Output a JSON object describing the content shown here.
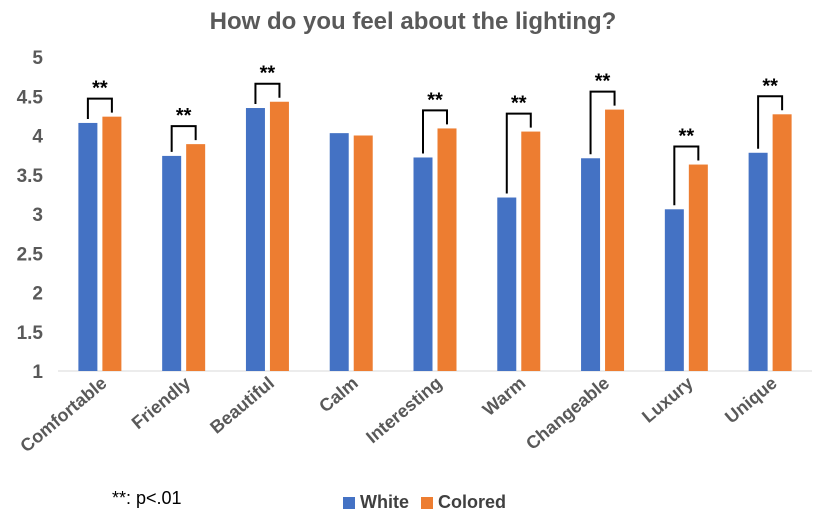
{
  "chart_data": {
    "type": "bar",
    "title": "How do you feel about the lighting?",
    "categories": [
      "Comfortable",
      "Friendly",
      "Beautiful",
      "Calm",
      "Interesting",
      "Warm",
      "Changeable",
      "Luxury",
      "Unique"
    ],
    "series": [
      {
        "name": "White",
        "color": "#4472C4",
        "values": [
          4.16,
          3.74,
          4.35,
          4.03,
          3.72,
          3.21,
          3.71,
          3.06,
          3.78
        ]
      },
      {
        "name": "Colored",
        "color": "#ED7D31",
        "values": [
          4.24,
          3.89,
          4.43,
          4.0,
          4.09,
          4.05,
          4.33,
          3.63,
          4.27
        ]
      }
    ],
    "ylim": [
      1,
      5
    ],
    "yticks": [
      "1",
      "1.5",
      "2",
      "2.5",
      "3",
      "3.5",
      "4",
      "4.5",
      "5"
    ],
    "significance": [
      true,
      true,
      true,
      false,
      true,
      true,
      true,
      true,
      true
    ],
    "significance_label": "**",
    "grid": false,
    "legend_position": "bottom",
    "xlabel": "",
    "ylabel": ""
  },
  "note": "**: p<.01"
}
